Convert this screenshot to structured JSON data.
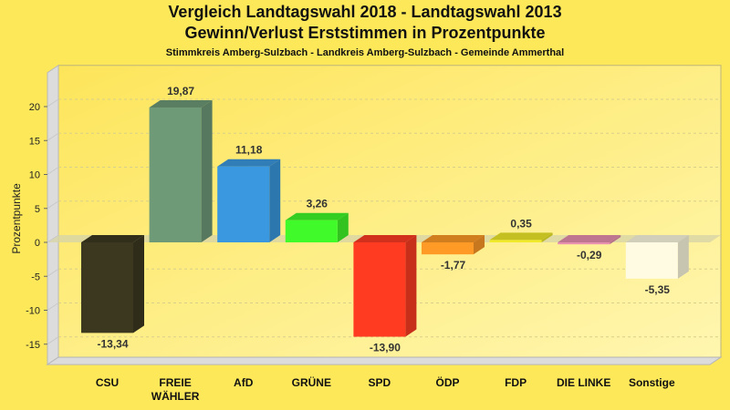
{
  "chart_data": {
    "type": "bar",
    "title": "Vergleich Landtagswahl 2018 - Landtagswahl 2013",
    "subtitle": "Gewinn/Verlust Erststimmen in Prozentpunkte",
    "subsubtitle": "Stimmkreis Amberg-Sulzbach - Landkreis Amberg-Sulzbach - Gemeinde Ammerthal",
    "xlabel": "",
    "ylabel": "Prozentpunkte",
    "ylim": [
      -18,
      25
    ],
    "yticks": [
      20,
      15,
      10,
      5,
      0,
      -5,
      -10,
      -15
    ],
    "grid": true,
    "categories": [
      "CSU",
      "FREIE\nWÄHLER",
      "AfD",
      "GRÜNE",
      "SPD",
      "ÖDP",
      "FDP",
      "DIE LINKE",
      "Sonstige"
    ],
    "values": [
      -13.34,
      19.87,
      11.18,
      3.26,
      -13.9,
      -1.77,
      0.35,
      -0.29,
      -5.35
    ],
    "value_labels": [
      "-13,34",
      "19,87",
      "11,18",
      "3,26",
      "-13,90",
      "-1,77",
      "0,35",
      "-0,29",
      "-5,35"
    ],
    "colors": [
      "#3c3820",
      "#6e9a78",
      "#3a98e0",
      "#40fa2a",
      "#ff3c22",
      "#ff9a26",
      "#f0ea2a",
      "#e890b0",
      "#fffbe2"
    ]
  }
}
